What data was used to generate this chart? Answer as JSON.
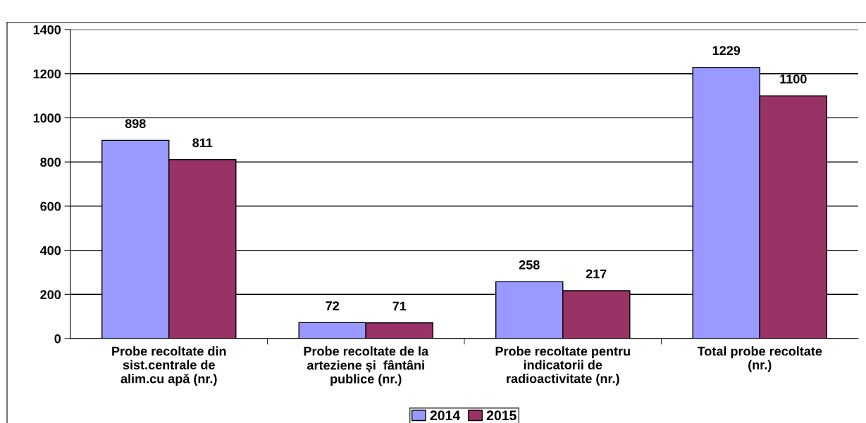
{
  "chart_data": {
    "type": "bar",
    "categories": [
      "Probe recoltate din\nsist.centrale de\nalim.cu apă (nr.)",
      "Probe recoltate de la\narteziene şi  fântâni\npublice (nr.)",
      "Probe recoltate pentru\nindicatorii de\nradioactivitate (nr.)",
      "Total probe recoltate\n(nr.)"
    ],
    "series": [
      {
        "name": "2014",
        "color": "#9999ff",
        "values": [
          898,
          72,
          258,
          1229
        ]
      },
      {
        "name": "2015",
        "color": "#993366",
        "values": [
          811,
          71,
          217,
          1100
        ]
      }
    ],
    "ylim": [
      0,
      1400
    ],
    "yticks": [
      0,
      200,
      400,
      600,
      800,
      1000,
      1200,
      1400
    ],
    "grid": "y",
    "data_labels": true,
    "legend": "bottom"
  }
}
